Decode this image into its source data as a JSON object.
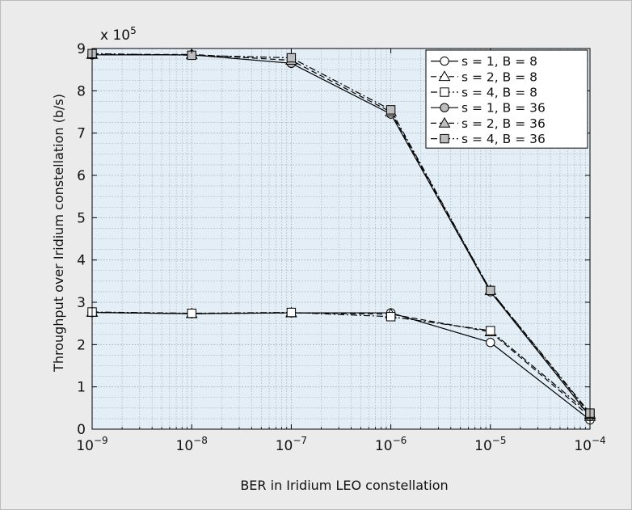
{
  "chart_data": {
    "type": "line",
    "xlabel": "BER in Iridium LEO constellation",
    "ylabel": "Throughput over Iridium constellation (b/s)",
    "y_multiplier_label": {
      "prefix": "x 10",
      "exponent": "5"
    },
    "x_scale": "log",
    "xlim": [
      1e-09,
      0.0001
    ],
    "ylim": [
      0,
      9
    ],
    "grid": true,
    "legend_position": "top-right",
    "x_ticks": [
      {
        "value": 1e-09,
        "base": "10",
        "exp": "−9"
      },
      {
        "value": 1e-08,
        "base": "10",
        "exp": "−8"
      },
      {
        "value": 1e-07,
        "base": "10",
        "exp": "−7"
      },
      {
        "value": 1e-06,
        "base": "10",
        "exp": "−6"
      },
      {
        "value": 1e-05,
        "base": "10",
        "exp": "−5"
      },
      {
        "value": 0.0001,
        "base": "10",
        "exp": "−4"
      }
    ],
    "y_ticks": [
      "0",
      "1",
      "2",
      "3",
      "4",
      "5",
      "6",
      "7",
      "8",
      "9"
    ],
    "x": [
      1e-09,
      1e-08,
      1e-07,
      1e-06,
      1e-05,
      0.0001
    ],
    "series": [
      {
        "name": "s = 1, B = 8",
        "marker": "circle",
        "fill": "#ffffff",
        "dash": "solid",
        "values": [
          2.76,
          2.73,
          2.75,
          2.75,
          2.05,
          0.22
        ]
      },
      {
        "name": "s = 2, B = 8",
        "marker": "triangle",
        "fill": "#ffffff",
        "dash": "dashed",
        "values": [
          2.76,
          2.73,
          2.75,
          2.72,
          2.3,
          0.3
        ]
      },
      {
        "name": "s = 4, B = 8",
        "marker": "square",
        "fill": "#ffffff",
        "dash": "dashdot",
        "values": [
          2.77,
          2.74,
          2.76,
          2.66,
          2.33,
          0.36
        ]
      },
      {
        "name": "s = 1, B = 36",
        "marker": "circle",
        "fill": "#bdbdbd",
        "dash": "solid",
        "values": [
          8.85,
          8.85,
          8.65,
          7.45,
          3.25,
          0.3
        ]
      },
      {
        "name": "s = 2, B = 36",
        "marker": "triangle",
        "fill": "#bdbdbd",
        "dash": "dashed",
        "values": [
          8.86,
          8.86,
          8.72,
          7.5,
          3.28,
          0.35
        ]
      },
      {
        "name": "s = 4, B = 36",
        "marker": "square",
        "fill": "#bdbdbd",
        "dash": "dashdot",
        "values": [
          8.88,
          8.84,
          8.78,
          7.55,
          3.28,
          0.38
        ]
      }
    ],
    "colors": {
      "figure_bg": "#ebebeb",
      "plot_bg": "#e3eef6",
      "grid": "#9aa6ad",
      "line": "#000000"
    }
  }
}
